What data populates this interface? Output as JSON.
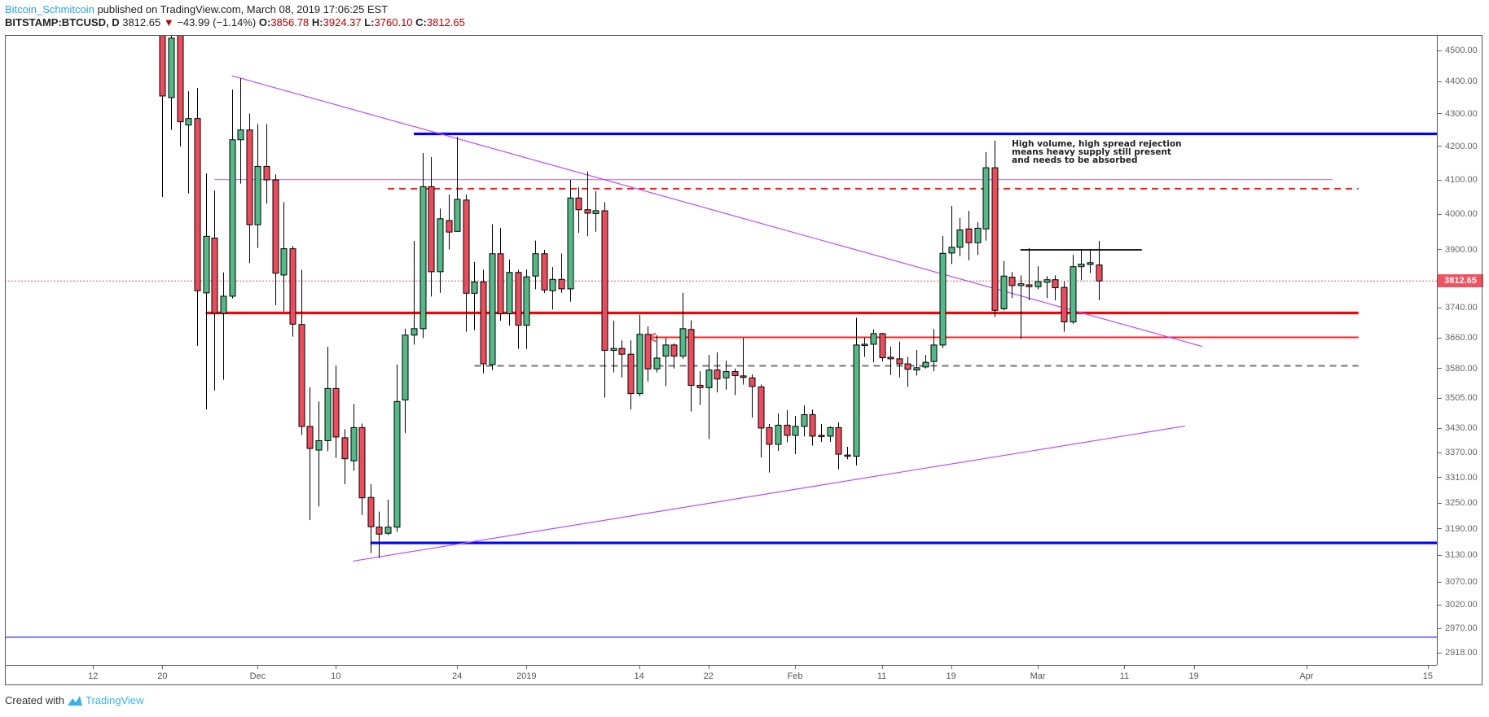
{
  "header": {
    "author": "Bitcoin_Schmitcoin",
    "published": " published on TradingView.com, March 08, 2019 17:06:25 EST",
    "symbol": "BITSTAMP:BTCUSD, D",
    "last": "3812.65",
    "direction_icon": "triangle-down",
    "change": "−43.99 (−1.14%)",
    "open_label": "O:",
    "open": "3856.78",
    "high_label": "H:",
    "high": "3924.37",
    "low_label": "L:",
    "low": "3760.10",
    "close_label": "C:",
    "close": "3812.65"
  },
  "footer": {
    "created_with": "Created with",
    "brand": "TradingView"
  },
  "colors": {
    "up": "#53b987",
    "down": "#eb4d5c",
    "wick": "#000000",
    "last_price": "#ef5361"
  },
  "chart_data": {
    "type": "candlestick",
    "symbol": "BITSTAMP:BTCUSD",
    "interval": "D",
    "scale": "log",
    "ylim": [
      2900,
      4560
    ],
    "last_price": 3812.65,
    "price_ticks": [
      "4500.00",
      "4400.00",
      "4300.00",
      "4200.00",
      "4100.00",
      "4000.00",
      "3900.00",
      "3740.00",
      "3660.00",
      "3580.00",
      "3505.00",
      "3430.00",
      "3370.00",
      "3310.00",
      "3250.00",
      "3190.00",
      "3130.00",
      "3070.00",
      "3020.00",
      "2970.00",
      "2918.00"
    ],
    "time_ticks": [
      {
        "label": "12",
        "date": "2018-11-12"
      },
      {
        "label": "20",
        "date": "2018-11-20"
      },
      {
        "label": "Dec",
        "date": "2018-12-01"
      },
      {
        "label": "10",
        "date": "2018-12-10"
      },
      {
        "label": "24",
        "date": "2018-12-24"
      },
      {
        "label": "2019",
        "date": "2019-01-01"
      },
      {
        "label": "14",
        "date": "2019-01-14"
      },
      {
        "label": "22",
        "date": "2019-01-22"
      },
      {
        "label": "Feb",
        "date": "2019-02-01"
      },
      {
        "label": "11",
        "date": "2019-02-11"
      },
      {
        "label": "19",
        "date": "2019-02-19"
      },
      {
        "label": "Mar",
        "date": "2019-03-01"
      },
      {
        "label": "11",
        "date": "2019-03-11"
      },
      {
        "label": "19",
        "date": "2019-03-19"
      },
      {
        "label": "Apr",
        "date": "2019-04-01"
      },
      {
        "label": "15",
        "date": "2019-04-15"
      }
    ],
    "columns": [
      "date",
      "open",
      "high",
      "low",
      "close"
    ],
    "candles": [
      [
        "2018-11-20",
        4780,
        4950,
        4050,
        4355
      ],
      [
        "2018-11-21",
        4350,
        4620,
        4250,
        4540
      ],
      [
        "2018-11-22",
        4550,
        4620,
        4200,
        4275
      ],
      [
        "2018-11-23",
        4265,
        4370,
        4060,
        4285
      ],
      [
        "2018-11-24",
        4285,
        4380,
        3639,
        3786
      ],
      [
        "2018-11-25",
        3780,
        4119,
        3476,
        3937
      ],
      [
        "2018-11-26",
        3932,
        4069,
        3524,
        3725
      ],
      [
        "2018-11-27",
        3725,
        3836,
        3551,
        3771
      ],
      [
        "2018-11-28",
        3771,
        4375,
        3765,
        4220
      ],
      [
        "2018-11-29",
        4220,
        4411,
        4089,
        4250
      ],
      [
        "2018-11-30",
        4250,
        4300,
        3862,
        3970
      ],
      [
        "2018-12-01",
        3970,
        4268,
        3904,
        4140
      ],
      [
        "2018-12-02",
        4140,
        4268,
        4031,
        4100
      ],
      [
        "2018-12-03",
        4100,
        4116,
        3747,
        3834
      ],
      [
        "2018-12-04",
        3829,
        4035,
        3730,
        3902
      ],
      [
        "2018-12-05",
        3902,
        3910,
        3663,
        3696
      ],
      [
        "2018-12-06",
        3695,
        3843,
        3413,
        3434
      ],
      [
        "2018-12-07",
        3434,
        3532,
        3210,
        3380
      ],
      [
        "2018-12-08",
        3376,
        3496,
        3242,
        3399
      ],
      [
        "2018-12-09",
        3399,
        3636,
        3373,
        3529
      ],
      [
        "2018-12-10",
        3529,
        3588,
        3357,
        3408
      ],
      [
        "2018-12-11",
        3406,
        3427,
        3294,
        3355
      ],
      [
        "2018-12-12",
        3350,
        3490,
        3326,
        3431
      ],
      [
        "2018-12-13",
        3431,
        3441,
        3222,
        3262
      ],
      [
        "2018-12-14",
        3263,
        3294,
        3135,
        3195
      ],
      [
        "2018-12-15",
        3194,
        3230,
        3124,
        3178
      ],
      [
        "2018-12-16",
        3180,
        3258,
        3176,
        3194
      ],
      [
        "2018-12-17",
        3194,
        3590,
        3183,
        3496
      ],
      [
        "2018-12-18",
        3500,
        3684,
        3418,
        3667
      ],
      [
        "2018-12-19",
        3667,
        3924,
        3642,
        3684
      ],
      [
        "2018-12-20",
        3684,
        4180,
        3659,
        4080
      ],
      [
        "2018-12-21",
        4080,
        4168,
        3770,
        3838
      ],
      [
        "2018-12-22",
        3838,
        4016,
        3780,
        3987
      ],
      [
        "2018-12-23",
        3982,
        4057,
        3900,
        3949
      ],
      [
        "2018-12-24",
        3951,
        4229,
        3950,
        4043
      ],
      [
        "2018-12-25",
        4041,
        4057,
        3676,
        3779
      ],
      [
        "2018-12-26",
        3779,
        3865,
        3680,
        3810
      ],
      [
        "2018-12-27",
        3810,
        3843,
        3568,
        3592
      ],
      [
        "2018-12-28",
        3590,
        3971,
        3576,
        3888
      ],
      [
        "2018-12-29",
        3888,
        3961,
        3705,
        3724
      ],
      [
        "2018-12-30",
        3724,
        3872,
        3692,
        3836
      ],
      [
        "2018-12-31",
        3836,
        3843,
        3631,
        3693
      ],
      [
        "2019-01-01",
        3693,
        3844,
        3631,
        3824
      ],
      [
        "2019-01-02",
        3826,
        3925,
        3790,
        3888
      ],
      [
        "2019-01-03",
        3888,
        3899,
        3780,
        3788
      ],
      [
        "2019-01-04",
        3786,
        3851,
        3735,
        3817
      ],
      [
        "2019-01-05",
        3817,
        3889,
        3780,
        3791
      ],
      [
        "2019-01-06",
        3791,
        4100,
        3756,
        4047
      ],
      [
        "2019-01-07",
        4047,
        4078,
        3947,
        4013
      ],
      [
        "2019-01-08",
        4013,
        4125,
        3937,
        4003
      ],
      [
        "2019-01-09",
        4002,
        4067,
        3950,
        4010
      ],
      [
        "2019-01-10",
        4010,
        4035,
        3506,
        3627
      ],
      [
        "2019-01-11",
        3627,
        3705,
        3570,
        3632
      ],
      [
        "2019-01-12",
        3632,
        3653,
        3557,
        3617
      ],
      [
        "2019-01-13",
        3617,
        3653,
        3476,
        3516
      ],
      [
        "2019-01-14",
        3516,
        3721,
        3509,
        3669
      ],
      [
        "2019-01-15",
        3669,
        3690,
        3547,
        3579
      ],
      [
        "2019-01-16",
        3579,
        3667,
        3570,
        3607
      ],
      [
        "2019-01-17",
        3612,
        3659,
        3535,
        3641
      ],
      [
        "2019-01-18",
        3641,
        3645,
        3580,
        3612
      ],
      [
        "2019-01-19",
        3612,
        3780,
        3605,
        3684
      ],
      [
        "2019-01-20",
        3682,
        3706,
        3471,
        3537
      ],
      [
        "2019-01-21",
        3537,
        3573,
        3487,
        3531
      ],
      [
        "2019-01-22",
        3531,
        3615,
        3403,
        3576
      ],
      [
        "2019-01-23",
        3576,
        3622,
        3519,
        3553
      ],
      [
        "2019-01-24",
        3556,
        3600,
        3526,
        3572
      ],
      [
        "2019-01-25",
        3572,
        3580,
        3512,
        3562
      ],
      [
        "2019-01-26",
        3561,
        3659,
        3539,
        3557
      ],
      [
        "2019-01-27",
        3556,
        3565,
        3456,
        3534
      ],
      [
        "2019-01-28",
        3533,
        3539,
        3358,
        3430
      ],
      [
        "2019-01-29",
        3431,
        3440,
        3322,
        3390
      ],
      [
        "2019-01-30",
        3390,
        3466,
        3374,
        3437
      ],
      [
        "2019-01-31",
        3437,
        3474,
        3395,
        3412
      ],
      [
        "2019-02-01",
        3412,
        3460,
        3366,
        3434
      ],
      [
        "2019-02-02",
        3434,
        3486,
        3409,
        3463
      ],
      [
        "2019-02-03",
        3463,
        3476,
        3387,
        3410
      ],
      [
        "2019-02-04",
        3412,
        3440,
        3396,
        3410
      ],
      [
        "2019-02-05",
        3410,
        3434,
        3396,
        3431
      ],
      [
        "2019-02-06",
        3431,
        3444,
        3330,
        3366
      ],
      [
        "2019-02-07",
        3364,
        3384,
        3354,
        3361
      ],
      [
        "2019-02-08",
        3361,
        3713,
        3339,
        3641
      ],
      [
        "2019-02-09",
        3641,
        3660,
        3610,
        3643
      ],
      [
        "2019-02-10",
        3643,
        3682,
        3596,
        3671
      ],
      [
        "2019-02-11",
        3671,
        3673,
        3598,
        3608
      ],
      [
        "2019-02-12",
        3609,
        3637,
        3563,
        3605
      ],
      [
        "2019-02-13",
        3605,
        3650,
        3557,
        3592
      ],
      [
        "2019-02-14",
        3592,
        3610,
        3533,
        3578
      ],
      [
        "2019-02-15",
        3576,
        3628,
        3562,
        3582
      ],
      [
        "2019-02-16",
        3584,
        3615,
        3580,
        3596
      ],
      [
        "2019-02-17",
        3598,
        3683,
        3573,
        3641
      ],
      [
        "2019-02-18",
        3641,
        3938,
        3633,
        3889
      ],
      [
        "2019-02-19",
        3890,
        4024,
        3859,
        3906
      ],
      [
        "2019-02-20",
        3906,
        3989,
        3881,
        3955
      ],
      [
        "2019-02-21",
        3958,
        4010,
        3870,
        3919
      ],
      [
        "2019-02-22",
        3919,
        3977,
        3885,
        3960
      ],
      [
        "2019-02-23",
        3958,
        4183,
        3925,
        4136
      ],
      [
        "2019-02-24",
        4136,
        4217,
        3715,
        3733
      ],
      [
        "2019-02-25",
        3737,
        3868,
        3733,
        3826
      ],
      [
        "2019-02-26",
        3823,
        3837,
        3766,
        3800
      ],
      [
        "2019-02-27",
        3800,
        3828,
        3657,
        3805
      ],
      [
        "2019-02-28",
        3802,
        3904,
        3760,
        3797
      ],
      [
        "2019-03-01",
        3797,
        3853,
        3790,
        3811
      ],
      [
        "2019-03-02",
        3809,
        3826,
        3766,
        3816
      ],
      [
        "2019-03-03",
        3816,
        3828,
        3760,
        3794
      ],
      [
        "2019-03-04",
        3795,
        3811,
        3676,
        3702
      ],
      [
        "2019-03-05",
        3702,
        3885,
        3697,
        3852
      ],
      [
        "2019-03-06",
        3852,
        3900,
        3815,
        3859
      ],
      [
        "2019-03-07",
        3858,
        3898,
        3834,
        3863
      ],
      [
        "2019-03-08",
        3856.78,
        3924.37,
        3760.1,
        3812.65
      ]
    ],
    "drawings": [
      {
        "name": "resistance-blue-line",
        "kind": "hline",
        "price": 4238,
        "from": "2018-12-19",
        "to": "extend",
        "color": "#0000ff",
        "weight": "thick",
        "style": "solid"
      },
      {
        "name": "support-blue-line",
        "kind": "hline",
        "price": 3158,
        "from": "2018-12-14",
        "to": "extend",
        "color": "#0000ff",
        "weight": "thick",
        "style": "solid"
      },
      {
        "name": "lower-blue-line",
        "kind": "hline",
        "price": 2951,
        "from": "extend",
        "to": "extend",
        "color": "#7b7bff",
        "weight": "medium",
        "style": "solid"
      },
      {
        "name": "purple-horizontal-line",
        "kind": "hline",
        "price": 4101,
        "from": "2018-11-26",
        "to": "2019-04-04",
        "color": "#c77dff",
        "weight": "thin",
        "style": "solid"
      },
      {
        "name": "red-dashed-line",
        "kind": "hline",
        "price": 4074,
        "from": "2018-12-16",
        "to": "2019-04-07",
        "color": "#ff1a1a",
        "weight": "medium",
        "style": "dashed"
      },
      {
        "name": "red-thick-line",
        "kind": "hline",
        "price": 3726,
        "from": "2018-11-25",
        "to": "2019-04-07",
        "color": "#ff0000",
        "weight": "thick",
        "style": "solid"
      },
      {
        "name": "red-support-line",
        "kind": "hline",
        "price": 3661,
        "from": "2019-01-15",
        "to": "2019-04-07",
        "color": "#ff2020",
        "weight": "medium",
        "style": "solid",
        "arrow": "left"
      },
      {
        "name": "gray-dashed-line",
        "kind": "hline",
        "price": 3587,
        "from": "2018-12-26",
        "to": "2019-04-07",
        "color": "#777777",
        "weight": "medium",
        "style": "dashed"
      },
      {
        "name": "black-range-line",
        "kind": "hline",
        "price": 3899,
        "from": "2019-02-27",
        "to": "2019-03-13",
        "color": "#222222",
        "weight": "medium",
        "style": "solid"
      },
      {
        "name": "descending-trendline",
        "kind": "trend",
        "p1": [
          "2018-11-28",
          4419
        ],
        "p2": [
          "2019-03-20",
          3637
        ],
        "color": "#b84dff",
        "weight": "thin",
        "style": "solid"
      },
      {
        "name": "ascending-trendline",
        "kind": "trend",
        "p1": [
          "2018-12-12",
          3117
        ],
        "p2": [
          "2019-03-18",
          3435
        ],
        "color": "#b84dff",
        "weight": "thin",
        "style": "solid"
      }
    ],
    "annotation": {
      "date": "2019-02-26",
      "price": 4219,
      "lines": [
        "High volume, high spread rejection",
        "means heavy supply still present",
        "and needs to be absorbed"
      ]
    }
  }
}
